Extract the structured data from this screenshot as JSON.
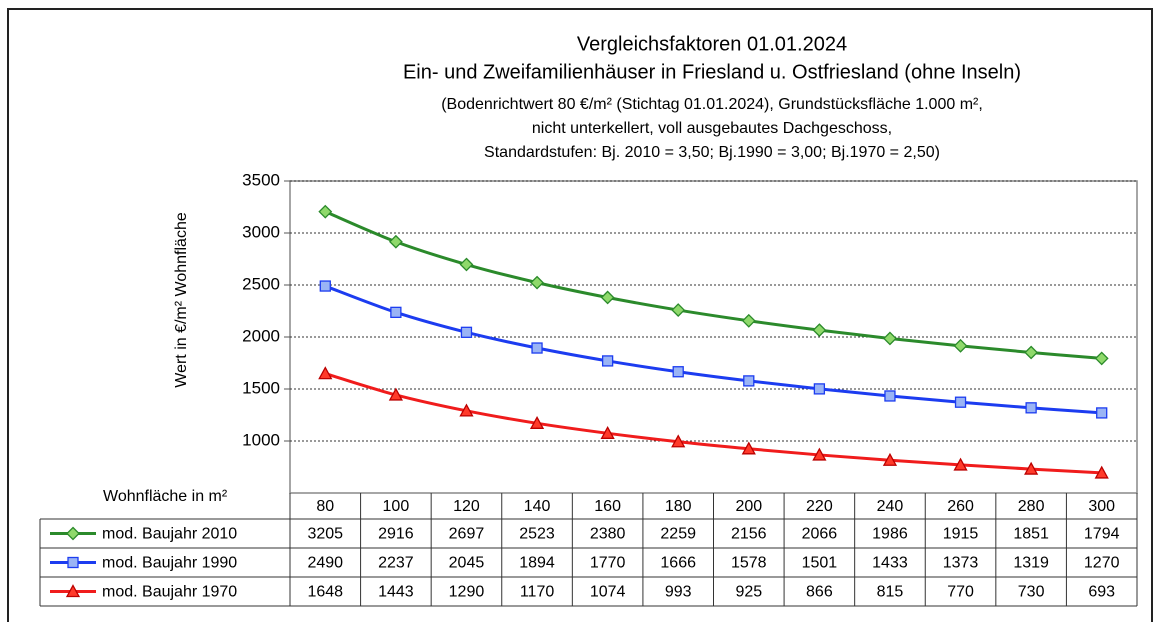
{
  "chart_data": {
    "type": "line",
    "title": [
      "Vergleichsfaktoren 01.01.2024",
      "Ein- und Zweifamilienhäuser in Friesland u. Ostfriesland (ohne Inseln)"
    ],
    "subtitle": [
      "(Bodenrichtwert 80 €/m² (Stichtag 01.01.2024), Grundstücksfläche  1.000 m²,",
      "nicht unterkellert,  voll ausgebautes  Dachgeschoss,",
      "Standardstufen:  Bj. 2010 = 3,50; Bj.1990 = 3,00; Bj.1970 = 2,50)"
    ],
    "y_label": "Wert in €/m²  Wohnfläche",
    "x_label": "Wohnfläche in m²",
    "categories": [
      80,
      100,
      120,
      140,
      160,
      180,
      200,
      220,
      240,
      260,
      280,
      300
    ],
    "series": [
      {
        "name": "mod. Baujahr 2010",
        "color": "#2b8a2b",
        "marker": "diamond",
        "marker_fill": "#8fd96b",
        "values": [
          3205,
          2916,
          2697,
          2523,
          2380,
          2259,
          2156,
          2066,
          1986,
          1915,
          1851,
          1794
        ]
      },
      {
        "name": "mod. Baujahr 1990",
        "color": "#1c3cf0",
        "marker": "square",
        "marker_fill": "#9ab4f5",
        "values": [
          2490,
          2237,
          2045,
          1894,
          1770,
          1666,
          1578,
          1501,
          1433,
          1373,
          1319,
          1270
        ]
      },
      {
        "name": "mod. Baujahr 1970",
        "color": "#f01c1c",
        "marker": "triangle",
        "marker_fill": "#ff3a2a",
        "values": [
          1648,
          1443,
          1290,
          1170,
          1074,
          993,
          925,
          866,
          815,
          770,
          730,
          693
        ]
      }
    ],
    "ylim": [
      500,
      3500
    ],
    "yticks": [
      1000,
      1500,
      2000,
      2500,
      3000,
      3500
    ],
    "grid": true
  }
}
